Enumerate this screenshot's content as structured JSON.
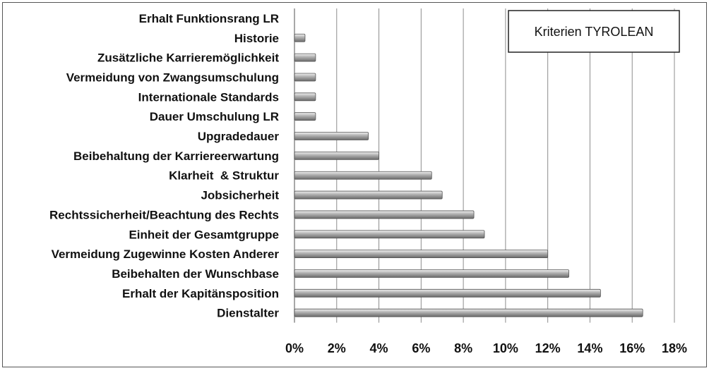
{
  "chart_data": {
    "type": "bar",
    "orientation": "horizontal",
    "legend_text": "Kriterien TYROLEAN",
    "legend_position": "top-right",
    "grid": true,
    "xlim": [
      0,
      18
    ],
    "x_ticks": [
      "0%",
      "2%",
      "4%",
      "6%",
      "8%",
      "10%",
      "12%",
      "14%",
      "16%",
      "18%"
    ],
    "x_tick_values": [
      0,
      2,
      4,
      6,
      8,
      10,
      12,
      14,
      16,
      18
    ],
    "categories": [
      "Erhalt Funktionsrang LR",
      "Historie",
      "Zusätzliche Karrieremöglichkeit",
      "Vermeidung von Zwangsumschulung",
      "Internationale Standards",
      "Dauer Umschulung LR",
      "Upgradedauer",
      "Beibehaltung der Karriereerwartung",
      "Klarheit  & Struktur",
      "Jobsicherheit",
      "Rechtssicherheit/Beachtung des Rechts",
      "Einheit der Gesamtgruppe",
      "Vermeidung Zugewinne Kosten Anderer",
      "Beibehalten der Wunschbase",
      "Erhalt der Kapitänsposition",
      "Dienstalter"
    ],
    "values": [
      0,
      0.5,
      1,
      1,
      1,
      1,
      3.5,
      4,
      6.5,
      7,
      8.5,
      9,
      12,
      13,
      14.5,
      16.5
    ],
    "unit": "%",
    "colors": {
      "bar_light": "#f2f2f2",
      "bar_mid": "#b4b4b4",
      "bar_dark": "#6a6a6a",
      "bar_stroke": "#555555",
      "grid": "#8c8c8c",
      "frame": "#555555"
    }
  }
}
